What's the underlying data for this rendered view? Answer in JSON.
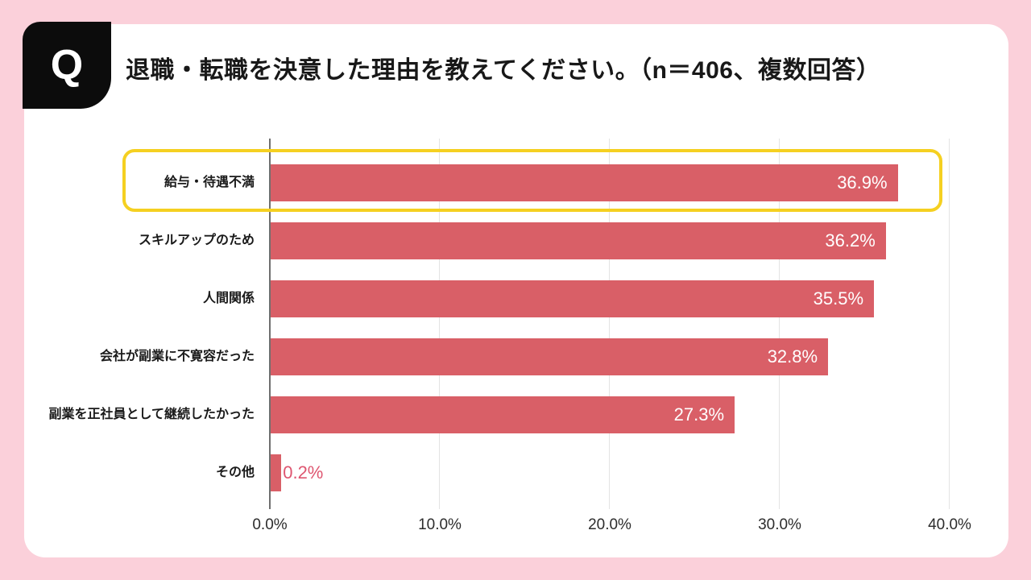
{
  "page": {
    "background_color": "#fbd0da",
    "card_color": "#ffffff"
  },
  "header": {
    "q_badge": "Q",
    "q_badge_color": "#0c0c0c",
    "title": "退職・転職を決意した理由を教えてください。（n＝406、複数回答）"
  },
  "chart_data": {
    "type": "bar",
    "orientation": "horizontal",
    "title": "退職・転職を決意した理由を教えてください。",
    "sample_note": "n＝406、複数回答",
    "categories": [
      "給与・待遇不満",
      "スキルアップのため",
      "人間関係",
      "会社が副業に不寛容だった",
      "副業を正社員として継続したかった",
      "その他"
    ],
    "values": [
      36.9,
      36.2,
      35.5,
      32.8,
      27.3,
      0.2
    ],
    "value_labels": [
      "36.9%",
      "36.2%",
      "35.5%",
      "32.8%",
      "27.3%",
      "0.2%"
    ],
    "x_ticks": [
      "0.0%",
      "10.0%",
      "20.0%",
      "30.0%",
      "40.0%"
    ],
    "xlim": [
      0,
      40
    ],
    "grid": true,
    "highlighted_index": 0,
    "bar_color": "#d95f67",
    "value_color_inside": "#ffffff",
    "value_color_outside": "#de5670",
    "highlight_border_color": "#f5d021",
    "legend": "none"
  }
}
